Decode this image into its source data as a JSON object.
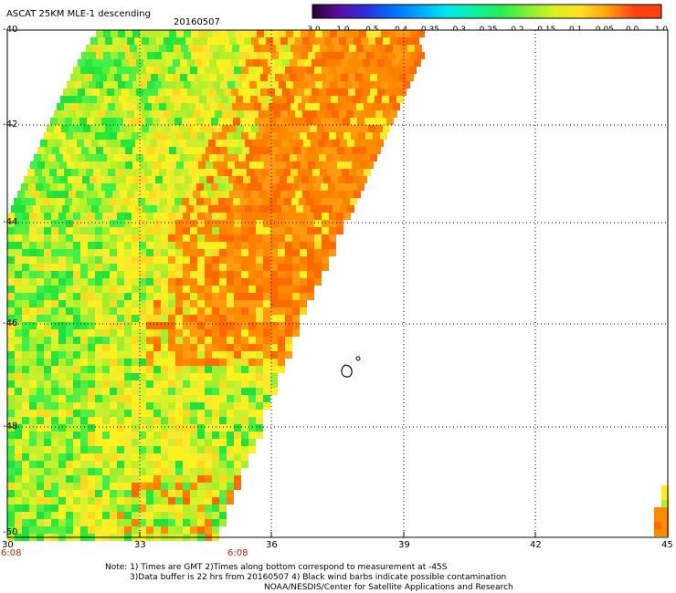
{
  "header": {
    "title": "ASCAT 25KM MLE-1 descending",
    "date": "20160507"
  },
  "colorbar": {
    "tick_labels": [
      "-3.0",
      "-1.0",
      "-0.5",
      "-0.4",
      "-0.35",
      "-0.3",
      "-0.25",
      "-0.2",
      "-0.15",
      "-0.1",
      "-0.05",
      "0.0",
      "1.0"
    ],
    "colors": [
      "#2a0033",
      "#5a10a0",
      "#2a30e0",
      "#0070ff",
      "#00a8ff",
      "#00e8f0",
      "#10f0a0",
      "#20f050",
      "#80f030",
      "#d8f020",
      "#ffe020",
      "#ffa010",
      "#ff4010"
    ]
  },
  "map": {
    "lat_labels": [
      "-40",
      "-42",
      "-44",
      "-46",
      "-48",
      "-50"
    ],
    "lon_labels": [
      "30",
      "33",
      "36",
      "39",
      "42",
      "45"
    ],
    "time_labels": [
      "6:08",
      "6:08"
    ],
    "colors": {
      "green": "#28e83a",
      "yellow_green": "#b8f028",
      "yellow": "#ffee20",
      "orange": "#ff8c00",
      "red_orange": "#ff6a00"
    }
  },
  "footer": {
    "note1": "Note: 1) Times are GMT 2)Times along bottom correspond to measurement at -45S",
    "note2": "3)Data buffer is 22 hrs from 20160507 4) Black wind barbs indicate possible contamination",
    "credit": "NOAA/NESDIS/Center for Satellite Applications and Research"
  }
}
